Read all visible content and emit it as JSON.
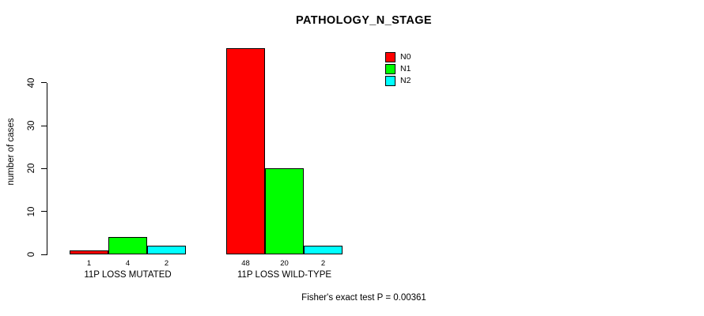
{
  "title": "PATHOLOGY_N_STAGE",
  "annotation": "Fisher's exact test P = 0.00361",
  "chart_data": {
    "type": "bar",
    "title": "PATHOLOGY_N_STAGE",
    "xlabel": "",
    "ylabel": "number of cases",
    "ylim": [
      0,
      40
    ],
    "yticks": [
      0,
      10,
      20,
      30,
      40
    ],
    "grid": false,
    "background": "#ffffff",
    "bar_border_color": "#000000",
    "categories": [
      "11P LOSS MUTATED",
      "11P LOSS WILD-TYPE"
    ],
    "series": [
      {
        "name": "N0",
        "color": "#ff0000",
        "values": [
          1,
          48
        ]
      },
      {
        "name": "N1",
        "color": "#00ff00",
        "values": [
          4,
          20
        ]
      },
      {
        "name": "N2",
        "color": "#00ffff",
        "values": [
          2,
          2
        ]
      }
    ],
    "bar_value_labels": [
      [
        1,
        4,
        2
      ],
      [
        48,
        20,
        2
      ]
    ],
    "legend": {
      "position": "top-right",
      "entries": [
        "N0",
        "N1",
        "N2"
      ]
    },
    "annotation": "Fisher's exact test P = 0.00361"
  }
}
